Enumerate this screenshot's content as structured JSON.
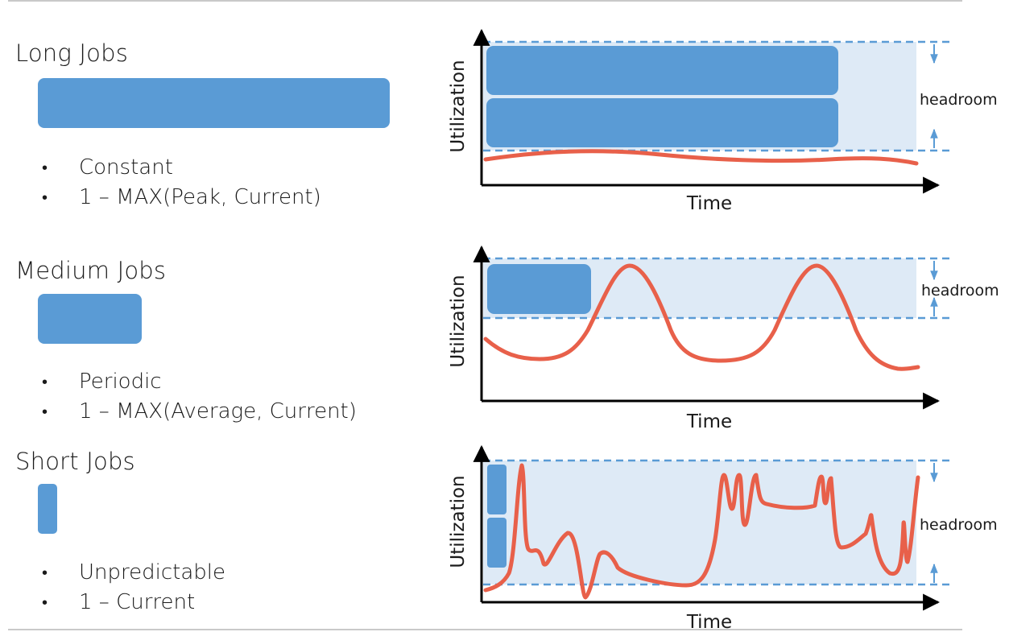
{
  "sections": [
    {
      "title": "Long Jobs",
      "bullets": [
        "Constant",
        "1 – MAX(Peak, Current)"
      ],
      "chart": {
        "ylabel": "Utilization",
        "xlabel": "Time",
        "annotation": "headroom"
      }
    },
    {
      "title": "Medium Jobs",
      "bullets": [
        "Periodic",
        "1 – MAX(Average, Current)"
      ],
      "chart": {
        "ylabel": "Utilization",
        "xlabel": "Time",
        "annotation": "headroom"
      }
    },
    {
      "title": "Short Jobs",
      "bullets": [
        "Unpredictable",
        "1 – Current"
      ],
      "chart": {
        "ylabel": "Utilization",
        "xlabel": "Time",
        "annotation": "headroom"
      }
    }
  ],
  "colors": {
    "job_block": "#5a9bd5",
    "headroom_band": "#deeaf6",
    "utilization_curve": "#e8604a",
    "dashed_line": "#5a9bd5",
    "axis": "#000000",
    "rule": "#c9c9c9"
  }
}
